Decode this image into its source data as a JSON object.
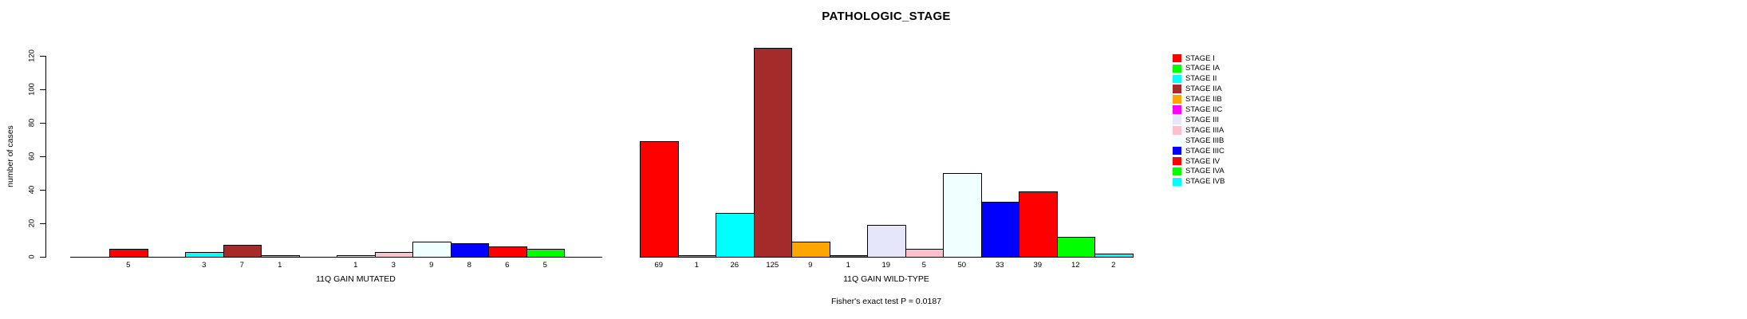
{
  "title": "PATHOLOGIC_STAGE",
  "y_axis": {
    "label": "number of cases",
    "ticks": [
      0,
      20,
      40,
      60,
      80,
      100,
      120
    ]
  },
  "chart_data": {
    "type": "bar",
    "title": "PATHOLOGIC_STAGE",
    "xlabel": "",
    "ylabel": "number of cases",
    "ylim": [
      0,
      120
    ],
    "yticks": [
      0,
      20,
      40,
      60,
      80,
      100,
      120
    ],
    "grid": false,
    "legend_position": "right",
    "categories": [
      "STAGE I",
      "STAGE IA",
      "STAGE II",
      "STAGE IIA",
      "STAGE IIB",
      "STAGE IIC",
      "STAGE III",
      "STAGE IIIA",
      "STAGE IIIB",
      "STAGE IIIC",
      "STAGE IV",
      "STAGE IVA",
      "STAGE IVB"
    ],
    "colors": [
      "#FF0000",
      "#00FF00",
      "#00FFFF",
      "#A52A2A",
      "#FFA500",
      "#FF00FF",
      "#E6E6FA",
      "#FFC0CB",
      "#F0FFFF",
      "#0000FF",
      "#FF0000",
      "#00FF00",
      "#00FFFF"
    ],
    "groups": [
      {
        "label": "11Q GAIN MUTATED",
        "values": [
          5,
          0,
          3,
          7,
          1,
          0,
          1,
          3,
          9,
          8,
          6,
          5,
          0
        ]
      },
      {
        "label": "11Q GAIN WILD-TYPE",
        "values": [
          69,
          1,
          26,
          125,
          9,
          1,
          19,
          5,
          50,
          33,
          39,
          12,
          2
        ]
      }
    ],
    "annotation": "Fisher's exact test P = 0.0187"
  }
}
